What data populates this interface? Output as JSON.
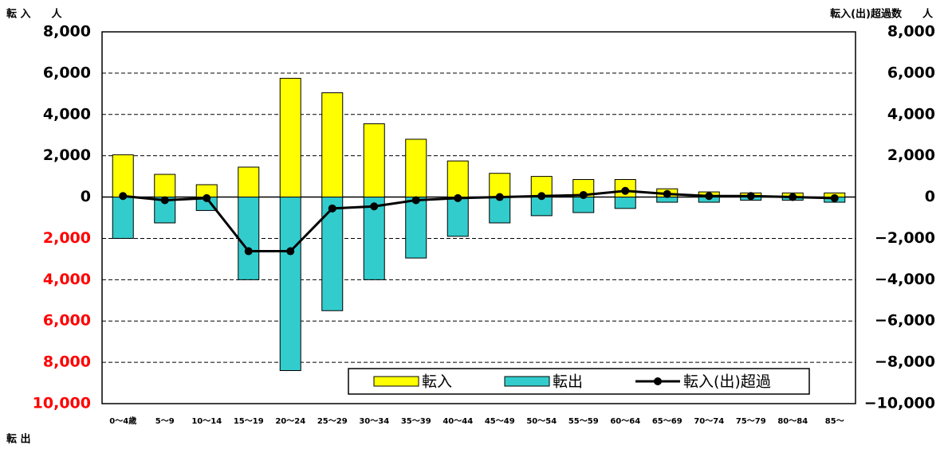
{
  "chart_data": {
    "type": "bar_line",
    "y_label_top": "転 入　　人",
    "y_label_bottom": "転 出",
    "y2_label": "転入(出)超過数　　人",
    "categories": [
      "0～4歳",
      "5～9",
      "10～14",
      "15～19",
      "20～24",
      "25～29",
      "30～34",
      "35～39",
      "40～44",
      "45～49",
      "50～54",
      "55～59",
      "60～64",
      "65～69",
      "70～74",
      "75～79",
      "80～84",
      "85～"
    ],
    "series": [
      {
        "name": "転入",
        "type": "bar",
        "color": "#ffff00",
        "values": [
          2050,
          1100,
          600,
          1450,
          5750,
          5050,
          3550,
          2800,
          1750,
          1150,
          1000,
          850,
          850,
          400,
          250,
          200,
          200,
          200
        ]
      },
      {
        "name": "転出",
        "type": "bar",
        "color": "#33cccc",
        "values": [
          -2000,
          -1250,
          -650,
          -4000,
          -8400,
          -5500,
          -4000,
          -2950,
          -1900,
          -1250,
          -900,
          -750,
          -550,
          -250,
          -250,
          -150,
          -150,
          -250
        ]
      },
      {
        "name": "転入(出)超過",
        "type": "line",
        "axis": "y2",
        "color": "#000000",
        "values": [
          50,
          -150,
          -50,
          -2620,
          -2620,
          -550,
          -450,
          -150,
          -50,
          0,
          50,
          100,
          300,
          150,
          50,
          50,
          0,
          -50
        ]
      }
    ],
    "ylim": [
      -10000,
      8000
    ],
    "yticks": [
      {
        "value": 8000,
        "label": "8,000"
      },
      {
        "value": 6000,
        "label": "6,000"
      },
      {
        "value": 4000,
        "label": "4,000"
      },
      {
        "value": 2000,
        "label": "2,000"
      },
      0,
      {
        "value": -2000,
        "label": "2,000"
      },
      {
        "value": -4000,
        "label": "4,000"
      },
      {
        "value": -6000,
        "label": "6,000"
      },
      {
        "value": -8000,
        "label": "8,000"
      },
      {
        "value": -10000,
        "label": "10,000"
      }
    ],
    "negative_tick_color": "#ff0000",
    "y2lim": [
      -10000,
      8000
    ],
    "y2ticks": [
      {
        "value": 8000,
        "label": "8,000"
      },
      {
        "value": 6000,
        "label": "6,000"
      },
      {
        "value": 4000,
        "label": "4,000"
      },
      {
        "value": 2000,
        "label": "2,000"
      },
      0,
      {
        "value": -2000,
        "label": "−2,000"
      },
      {
        "value": -4000,
        "label": "−4,000"
      },
      {
        "value": -6000,
        "label": "−6,000"
      },
      {
        "value": -8000,
        "label": "−8,000"
      },
      {
        "value": -10000,
        "label": "−10,000"
      }
    ],
    "grid": true,
    "legend": "lower right"
  }
}
